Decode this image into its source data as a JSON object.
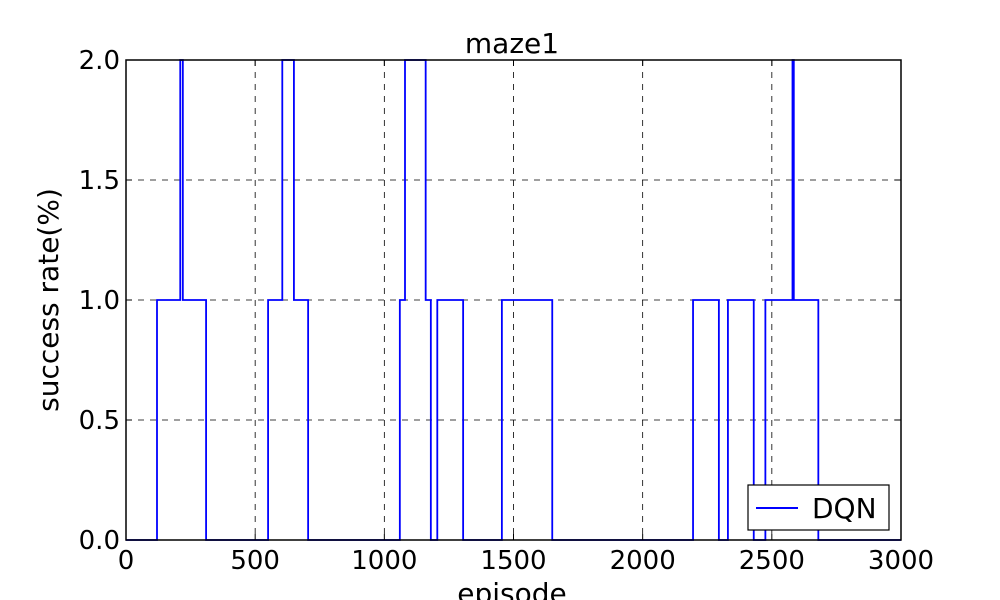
{
  "chart_data": {
    "type": "line",
    "title": "maze1",
    "xlabel": "episode",
    "ylabel": "success rate(%)",
    "xlim": [
      0,
      3000
    ],
    "ylim": [
      0,
      2.0
    ],
    "x_ticks": [
      "0",
      "500",
      "1000",
      "1500",
      "2000",
      "2500",
      "3000"
    ],
    "y_ticks": [
      "0.0",
      "0.5",
      "1.0",
      "1.5",
      "2.0"
    ],
    "grid": true,
    "legend_position": "lower-right",
    "series": [
      {
        "name": "DQN",
        "color": "#0000ff",
        "step": true,
        "x": [
          0,
          120,
          210,
          220,
          310,
          550,
          605,
          650,
          705,
          1060,
          1080,
          1160,
          1180,
          1205,
          1305,
          1455,
          1650,
          2195,
          2295,
          2330,
          2430,
          2475,
          2580,
          2585,
          2680,
          3000
        ],
        "y": [
          0,
          1,
          2,
          1,
          0,
          1,
          2,
          1,
          0,
          1,
          2,
          1,
          0,
          1,
          0,
          1,
          0,
          1,
          0,
          1,
          0,
          1,
          2,
          1,
          0,
          0
        ]
      }
    ]
  }
}
